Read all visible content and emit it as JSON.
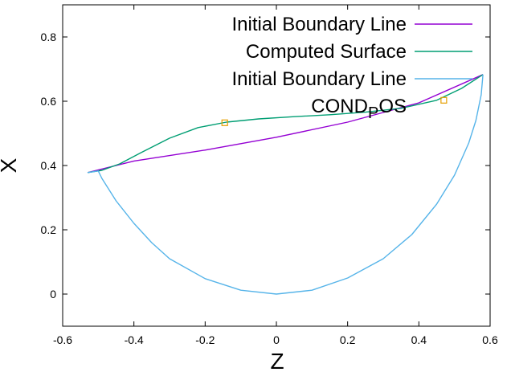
{
  "chart_data": {
    "type": "line",
    "xlabel": "Z",
    "ylabel": "X",
    "xlim": [
      -0.6,
      0.6
    ],
    "ylim": [
      -0.1,
      0.9
    ],
    "x_ticks": [
      -0.6,
      -0.4,
      -0.2,
      0,
      0.2,
      0.4,
      0.6
    ],
    "x_tick_labels": [
      "-0.6",
      "-0.4",
      "-0.2",
      "0",
      "0.2",
      "0.4",
      "0.6"
    ],
    "y_ticks": [
      0,
      0.2,
      0.4,
      0.6,
      0.8
    ],
    "y_tick_labels": [
      "0",
      "0.2",
      "0.4",
      "0.6",
      "0.8"
    ],
    "grid": false,
    "legend_position": "top-right",
    "series": [
      {
        "name": "Initial Boundary Line",
        "color": "#9400d3",
        "points": [
          [
            -0.53,
            0.378
          ],
          [
            -0.4,
            0.414
          ],
          [
            -0.2,
            0.448
          ],
          [
            0.0,
            0.488
          ],
          [
            0.2,
            0.535
          ],
          [
            0.4,
            0.595
          ],
          [
            0.58,
            0.683
          ]
        ]
      },
      {
        "name": "Computed Surface",
        "color": "#009e73",
        "points": [
          [
            -0.53,
            0.378
          ],
          [
            -0.49,
            0.385
          ],
          [
            -0.44,
            0.405
          ],
          [
            -0.38,
            0.44
          ],
          [
            -0.3,
            0.485
          ],
          [
            -0.22,
            0.518
          ],
          [
            -0.14,
            0.535
          ],
          [
            -0.05,
            0.545
          ],
          [
            0.05,
            0.552
          ],
          [
            0.15,
            0.558
          ],
          [
            0.25,
            0.566
          ],
          [
            0.35,
            0.578
          ],
          [
            0.45,
            0.603
          ],
          [
            0.52,
            0.64
          ],
          [
            0.58,
            0.683
          ]
        ]
      },
      {
        "name": "Initial Boundary Line",
        "color": "#56b4e9",
        "points": [
          [
            -0.53,
            0.378
          ],
          [
            -0.5,
            0.383
          ],
          [
            -0.49,
            0.36
          ],
          [
            -0.45,
            0.29
          ],
          [
            -0.4,
            0.22
          ],
          [
            -0.35,
            0.16
          ],
          [
            -0.3,
            0.11
          ],
          [
            -0.2,
            0.048
          ],
          [
            -0.1,
            0.012
          ],
          [
            0.0,
            0.0
          ],
          [
            0.1,
            0.012
          ],
          [
            0.2,
            0.05
          ],
          [
            0.3,
            0.11
          ],
          [
            0.38,
            0.185
          ],
          [
            0.45,
            0.28
          ],
          [
            0.5,
            0.37
          ],
          [
            0.54,
            0.47
          ],
          [
            0.56,
            0.54
          ],
          [
            0.575,
            0.62
          ],
          [
            0.58,
            0.683
          ]
        ]
      },
      {
        "name": "COND_POS",
        "name_main": "COND",
        "name_sub": "P",
        "name_rest": "OS",
        "color": "#e69f00",
        "marker": "square",
        "line": false,
        "points": [
          [
            -0.145,
            0.533
          ],
          [
            0.47,
            0.603
          ]
        ]
      }
    ]
  }
}
